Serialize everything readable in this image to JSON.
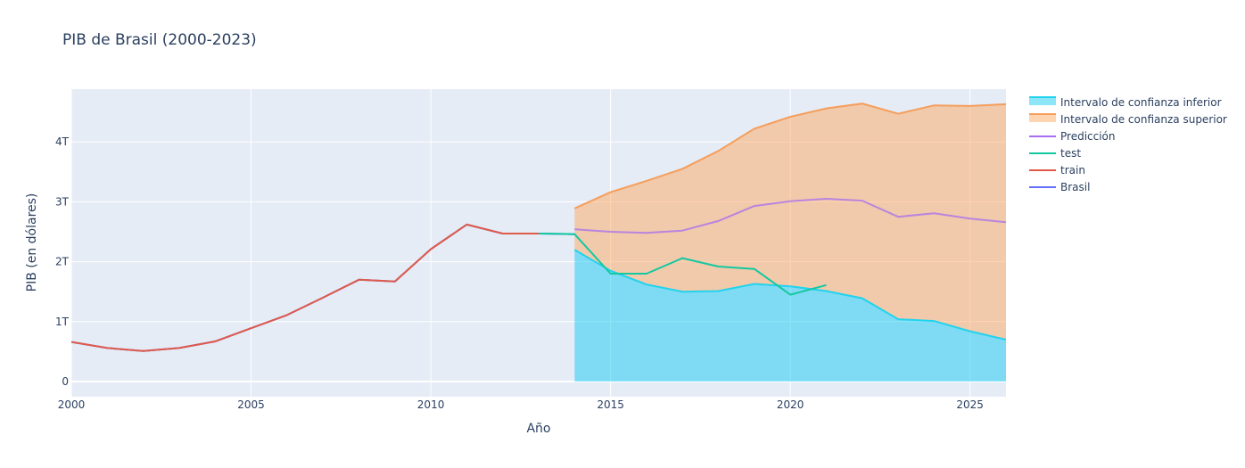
{
  "chart_data": {
    "type": "line",
    "title": "PIB de Brasil (2000-2023)",
    "xlabel": "Año",
    "ylabel": "PIB (en dólares)",
    "xlim": [
      2000,
      2026
    ],
    "ylim": [
      -0.25,
      4.9
    ],
    "x_ticks": [
      2000,
      2005,
      2010,
      2015,
      2020,
      2025
    ],
    "y_ticks": [
      0,
      1,
      2,
      3,
      4
    ],
    "y_tick_labels": [
      "0",
      "1T",
      "2T",
      "3T",
      "4T"
    ],
    "grid": true,
    "legend_position": "top-right",
    "colors": {
      "plot_bg": "#e5ecf6",
      "lower_line": "#22d3ee",
      "lower_fill": "rgba(0,200,240,0.45)",
      "upper_line": "#f59e5b",
      "upper_fill": "rgba(255,160,80,0.45)",
      "prediction": "#a66df0",
      "test": "#14c8a0",
      "train": "#e05a4a",
      "brasil": "#636efa"
    },
    "series": [
      {
        "name": "Intervalo de confianza inferior",
        "kind": "band-lower",
        "x": [
          2014,
          2015,
          2016,
          2017,
          2018,
          2019,
          2020,
          2021,
          2022,
          2023,
          2024,
          2025,
          2026
        ],
        "values": [
          2.2,
          1.85,
          1.62,
          1.5,
          1.51,
          1.63,
          1.59,
          1.51,
          1.39,
          1.04,
          1.01,
          0.84,
          0.7
        ]
      },
      {
        "name": "Intervalo de confianza superior",
        "kind": "band-upper",
        "x": [
          2014,
          2015,
          2016,
          2017,
          2018,
          2019,
          2020,
          2021,
          2022,
          2023,
          2024,
          2025,
          2026
        ],
        "values": [
          2.89,
          3.16,
          3.35,
          3.55,
          3.85,
          4.22,
          4.42,
          4.56,
          4.64,
          4.47,
          4.61,
          4.6,
          4.63
        ]
      },
      {
        "name": "Predicción",
        "kind": "line",
        "x": [
          2014,
          2015,
          2016,
          2017,
          2018,
          2019,
          2020,
          2021,
          2022,
          2023,
          2024,
          2025,
          2026
        ],
        "values": [
          2.54,
          2.5,
          2.48,
          2.52,
          2.68,
          2.93,
          3.01,
          3.05,
          3.02,
          2.75,
          2.81,
          2.72,
          2.66
        ]
      },
      {
        "name": "test",
        "kind": "line",
        "x": [
          2013,
          2014,
          2015,
          2016,
          2017,
          2018,
          2019,
          2020,
          2021
        ],
        "values": [
          2.47,
          2.46,
          1.8,
          1.8,
          2.06,
          1.92,
          1.88,
          1.45,
          1.61
        ]
      },
      {
        "name": "train",
        "kind": "line",
        "x": [
          2000,
          2001,
          2002,
          2003,
          2004,
          2005,
          2006,
          2007,
          2008,
          2009,
          2010,
          2011,
          2012,
          2013
        ],
        "values": [
          0.66,
          0.56,
          0.51,
          0.56,
          0.67,
          0.89,
          1.11,
          1.4,
          1.7,
          1.67,
          2.21,
          2.62,
          2.47,
          2.47
        ]
      },
      {
        "name": "Brasil",
        "kind": "line",
        "x": [
          2000,
          2001,
          2002,
          2003,
          2004,
          2005,
          2006,
          2007,
          2008,
          2009,
          2010,
          2011,
          2012,
          2013,
          2014
        ],
        "values": [
          0.66,
          0.56,
          0.51,
          0.56,
          0.67,
          0.89,
          1.11,
          1.4,
          1.7,
          1.67,
          2.21,
          2.62,
          2.47,
          2.47,
          2.46
        ]
      }
    ],
    "legend": [
      {
        "label": "Intervalo de confianza inferior",
        "style": "band",
        "series": "lower"
      },
      {
        "label": "Intervalo de confianza superior",
        "style": "band",
        "series": "upper"
      },
      {
        "label": "Predicción",
        "style": "line",
        "series": "prediction"
      },
      {
        "label": "test",
        "style": "line",
        "series": "test"
      },
      {
        "label": "train",
        "style": "line",
        "series": "train"
      },
      {
        "label": "Brasil",
        "style": "line",
        "series": "brasil"
      }
    ]
  }
}
